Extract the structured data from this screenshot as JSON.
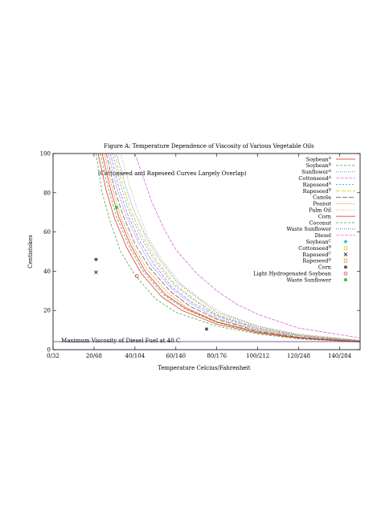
{
  "chart_data": {
    "type": "line",
    "title": "Figure A: Temperature Dependence of Viscosity of Various Vegetable Oils",
    "xlabel": "Temperature Celcius/Fahrenheit",
    "ylabel": "Centistokes",
    "xlim": [
      0,
      150
    ],
    "ylim": [
      0,
      100
    ],
    "x_ticks": [
      {
        "value": 0,
        "label": "0/32"
      },
      {
        "value": 20,
        "label": "20/68"
      },
      {
        "value": 40,
        "label": "40/104"
      },
      {
        "value": 60,
        "label": "60/140"
      },
      {
        "value": 80,
        "label": "80/176"
      },
      {
        "value": 100,
        "label": "100/212"
      },
      {
        "value": 120,
        "label": "120/248"
      },
      {
        "value": 140,
        "label": "140/284"
      }
    ],
    "y_ticks": [
      0,
      20,
      40,
      60,
      80,
      100
    ],
    "legend_position": "top-right",
    "annotations": [
      {
        "text": "(Cottonseed and Rapeseed Curves Largely Overlap)",
        "x": 22,
        "y": 89
      },
      {
        "text": "Maximum Viscosity of Diesel Fuel at 40 C",
        "x": 4,
        "y": 3.6
      }
    ],
    "diesel_limit": {
      "y": 4.1
    },
    "series": [
      {
        "name": "Soybean",
        "sub": "A",
        "color": "#e41a1c",
        "dash": "",
        "x": [
          24,
          28,
          32,
          38,
          45,
          55,
          65,
          80,
          100,
          120,
          150
        ],
        "y": [
          100,
          82,
          68,
          53,
          40,
          28,
          21,
          14,
          9,
          6,
          4
        ]
      },
      {
        "name": "Soybean",
        "sub": "B",
        "color": "#33a02c",
        "dash": "3,2",
        "x": [
          23,
          27,
          31,
          37,
          44,
          54,
          64,
          80,
          100,
          120,
          150
        ],
        "y": [
          100,
          82,
          68,
          53,
          40,
          28,
          21,
          13.8,
          8.8,
          6,
          4
        ]
      },
      {
        "name": "Sunflower",
        "sub": "A",
        "color": "#1f3fbf",
        "dash": "1,1.5",
        "x": [
          27,
          31,
          35,
          41,
          48,
          58,
          68,
          80,
          100,
          120,
          150
        ],
        "y": [
          100,
          83,
          70,
          56,
          43,
          31,
          23,
          16,
          10,
          6.5,
          4.2
        ]
      },
      {
        "name": "Cottonseed",
        "sub": "A",
        "color": "#d94fd9",
        "dash": "4,1.5",
        "x": [
          28,
          32,
          36,
          42,
          49,
          58,
          68,
          80,
          100,
          120,
          150
        ],
        "y": [
          100,
          83,
          70,
          56,
          44,
          32,
          24,
          17,
          10.5,
          7,
          4.3
        ]
      },
      {
        "name": "Rapeseed",
        "sub": "A",
        "color": "#00b3b3",
        "dash": "2,2",
        "x": [
          29,
          33,
          37,
          43,
          50,
          59,
          69,
          80,
          100,
          120,
          150
        ],
        "y": [
          100,
          84,
          71,
          57,
          45,
          33,
          25,
          17.5,
          11,
          7.2,
          4.4
        ]
      },
      {
        "name": "Rapeseed",
        "sub": "B",
        "color": "#e0c200",
        "dash": "5,2",
        "x": [
          30,
          34,
          38,
          44,
          51,
          60,
          70,
          80,
          100,
          120,
          150
        ],
        "y": [
          100,
          84,
          71,
          57,
          45,
          33,
          25,
          18,
          11.2,
          7.3,
          4.5
        ]
      },
      {
        "name": "Canola",
        "sub": "",
        "color": "#555555",
        "dash": "6,2",
        "x": [
          26,
          30,
          34,
          40,
          47,
          57,
          67,
          80,
          100,
          120,
          150
        ],
        "y": [
          100,
          82,
          69,
          54,
          42,
          30,
          22,
          15.5,
          9.5,
          6.3,
          4.1
        ]
      },
      {
        "name": "Peanut",
        "sub": "",
        "color": "#ff7f00",
        "dash": "2,1",
        "x": [
          25,
          29,
          33,
          39,
          46,
          56,
          66,
          80,
          100,
          120,
          150
        ],
        "y": [
          100,
          82,
          68,
          53,
          41,
          29,
          21,
          14.5,
          9,
          6.1,
          4
        ]
      },
      {
        "name": "Palm Oil",
        "sub": "",
        "color": "#a6761d",
        "dash": "1,2",
        "x": [
          33,
          37,
          41,
          46,
          53,
          62,
          72,
          82,
          100,
          120,
          150
        ],
        "y": [
          100,
          85,
          72,
          58,
          46,
          34,
          26,
          19,
          12,
          8,
          4.8
        ]
      },
      {
        "name": "Corn",
        "sub": "",
        "color": "#e41a1c",
        "dash": "",
        "x": [
          22,
          26,
          30,
          36,
          43,
          53,
          63,
          80,
          100,
          120,
          150
        ],
        "y": [
          100,
          81,
          67,
          52,
          39,
          27,
          20,
          13,
          8.5,
          5.8,
          3.9
        ]
      },
      {
        "name": "Coconut",
        "sub": "",
        "color": "#33a02c",
        "dash": "3,2",
        "x": [
          21,
          24,
          28,
          33,
          40,
          50,
          60,
          80,
          100,
          120,
          150
        ],
        "y": [
          100,
          80,
          65,
          50,
          38,
          26,
          19,
          12,
          8,
          5.5,
          3.8
        ]
      },
      {
        "name": "Waste Sunflower",
        "sub": "",
        "color": "#1f3fbf",
        "dash": "1,1.5",
        "x": [
          31,
          35,
          39,
          45,
          52,
          61,
          71,
          80,
          100,
          120,
          150
        ],
        "y": [
          100,
          85,
          72,
          58,
          46,
          34,
          26,
          19,
          11.8,
          7.6,
          4.6
        ]
      },
      {
        "name": "Diesel",
        "sub": "",
        "color": "#d94fd9",
        "dash": "4,1.5",
        "x": [
          40,
          44,
          48,
          54,
          60,
          70,
          80,
          90,
          100,
          120,
          150
        ],
        "y": [
          100,
          88,
          76,
          62,
          51,
          39,
          30,
          23,
          18,
          11,
          6
        ]
      }
    ],
    "points": [
      {
        "name": "Soybean",
        "sub": "C",
        "color": "#00b3b3",
        "marker": "star",
        "x": [],
        "y": []
      },
      {
        "name": "Cottonseed",
        "sub": "B",
        "color": "#e0c200",
        "marker": "square-open",
        "x": [],
        "y": []
      },
      {
        "name": "Rapeseed",
        "sub": "C",
        "color": "#000000",
        "marker": "x",
        "x": [
          21
        ],
        "y": [
          39.5
        ]
      },
      {
        "name": "Rapeseed",
        "sub": "D",
        "color": "#ff7f00",
        "marker": "square-open",
        "x": [],
        "y": []
      },
      {
        "name": "Corn",
        "sub": "",
        "color": "#555555",
        "marker": "square-filled",
        "x": [
          21,
          75
        ],
        "y": [
          46,
          10.5
        ]
      },
      {
        "name": "Light Hydrogenated Soybean",
        "sub": "",
        "color": "#e41a1c",
        "marker": "circle-open",
        "x": [
          41
        ],
        "y": [
          37.5
        ]
      },
      {
        "name": "Waste Sunflower",
        "sub": "",
        "color": "#33cc33",
        "marker": "circle-filled",
        "x": [
          31
        ],
        "y": [
          72.5
        ]
      }
    ]
  }
}
